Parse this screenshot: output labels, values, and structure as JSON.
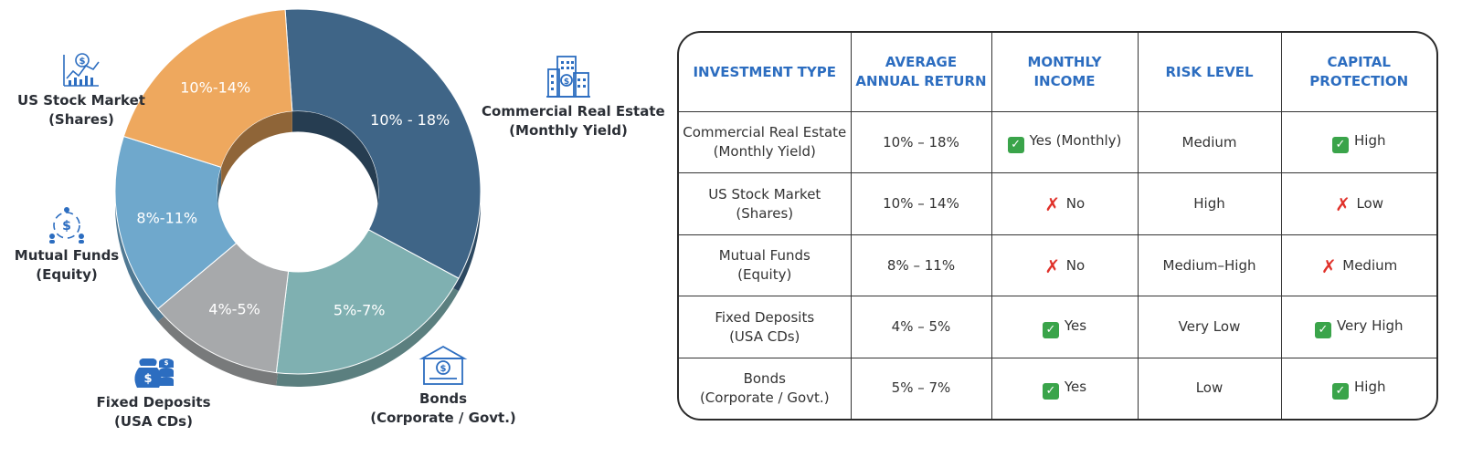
{
  "chart_data": [
    {
      "type": "pie",
      "slices": [
        {
          "label": "10% - 18%",
          "category": "Commercial Real Estate (Monthly Yield)",
          "color": "#3f6587",
          "share": 0.34
        },
        {
          "label": "5%-7%",
          "category": "Bonds (Corporate / Govt.)",
          "color": "#7fb0b1",
          "share": 0.19
        },
        {
          "label": "4%-5%",
          "category": "Fixed Deposits (USA CDs)",
          "color": "#a7a9ab",
          "share": 0.12
        },
        {
          "label": "8%-11%",
          "category": "Mutual Funds (Equity)",
          "color": "#6fa8cc",
          "share": 0.16
        },
        {
          "label": "10%-14%",
          "category": "US Stock Market (Shares)",
          "color": "#eea85e",
          "share": 0.19
        }
      ]
    },
    {
      "type": "table",
      "headers": [
        [
          "INVESTMENT TYPE"
        ],
        [
          "AVERAGE",
          "ANNUAL RETURN"
        ],
        [
          "MONTHLY INCOME"
        ],
        [
          "RISK LEVEL"
        ],
        [
          "CAPITAL",
          "PROTECTION"
        ]
      ],
      "rows": [
        {
          "type": [
            "Commercial Real Estate",
            "(Monthly Yield)"
          ],
          "return": "10% – 18%",
          "income_mark": "yes",
          "income": "Yes (Monthly)",
          "risk": "Medium",
          "protection_mark": "yes",
          "protection": "High"
        },
        {
          "type": [
            "US Stock Market",
            "(Shares)"
          ],
          "return": "10% – 14%",
          "income_mark": "no",
          "income": "No",
          "risk": "High",
          "protection_mark": "no",
          "protection": "Low"
        },
        {
          "type": [
            "Mutual Funds",
            "(Equity)"
          ],
          "return": "8% – 11%",
          "income_mark": "no",
          "income": "No",
          "risk": "Medium–High",
          "protection_mark": "no",
          "protection": "Medium"
        },
        {
          "type": [
            "Fixed Deposits",
            "(USA CDs)"
          ],
          "return": "4% – 5%",
          "income_mark": "yes",
          "income": "Yes",
          "risk": "Very Low",
          "protection_mark": "yes",
          "protection": "Very High"
        },
        {
          "type": [
            "Bonds",
            "(Corporate / Govt.)"
          ],
          "return": "5% – 7%",
          "income_mark": "yes",
          "income": "Yes",
          "risk": "Low",
          "protection_mark": "yes",
          "protection": "High"
        }
      ]
    }
  ],
  "categories": {
    "real_estate": {
      "line1": "Commercial Real Estate",
      "line2": "(Monthly Yield)",
      "icon": "buildings-icon"
    },
    "stocks": {
      "line1": "US Stock Market",
      "line2": "(Shares)",
      "icon": "stock-chart-icon"
    },
    "mutual_funds": {
      "line1": "Mutual Funds",
      "line2": "(Equity)",
      "icon": "people-dollar-icon"
    },
    "fixed_deposits": {
      "line1": "Fixed Deposits",
      "line2": "(USA CDs)",
      "icon": "money-bag-icon"
    },
    "bonds": {
      "line1": "Bonds",
      "line2": "(Corporate / Govt.)",
      "icon": "bank-certificate-icon"
    }
  },
  "colors": {
    "header_text": "#2c6dc0",
    "icon_blue": "#2c6dc0",
    "yes_mark": "#3aa44a",
    "no_mark": "#e0322b"
  }
}
